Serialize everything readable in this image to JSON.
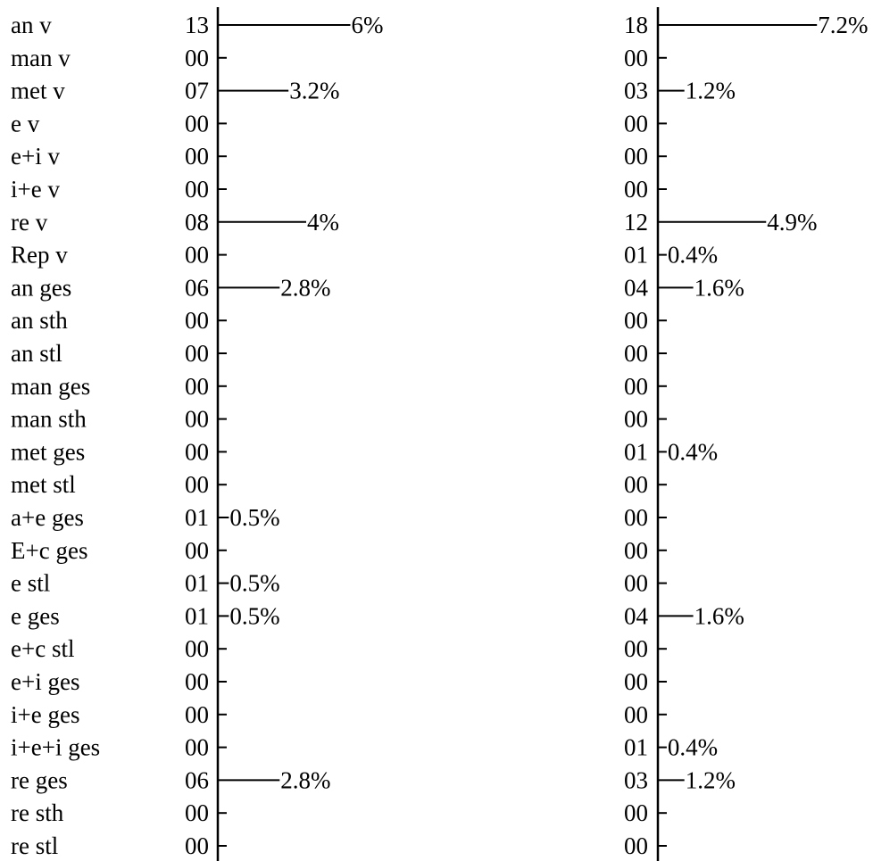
{
  "chart_data": {
    "type": "bar",
    "categories": [
      "an v",
      "man v",
      "met v",
      "e v",
      "e+i v",
      "i+e v",
      "re v",
      "Rep v",
      "an ges",
      "an sth",
      "an stl",
      "man ges",
      "man sth",
      "met ges",
      "met stl",
      "a+e ges",
      "E+c ges",
      "e stl",
      "e ges",
      "e+c stl",
      "e+i ges",
      "i+e ges",
      "i+e+i ges",
      "re ges",
      "re sth",
      "re stl"
    ],
    "panels": [
      {
        "counts": [
          "13",
          "00",
          "07",
          "00",
          "00",
          "00",
          "08",
          "00",
          "06",
          "00",
          "00",
          "00",
          "00",
          "00",
          "00",
          "01",
          "00",
          "01",
          "01",
          "00",
          "00",
          "00",
          "00",
          "06",
          "00",
          "00"
        ],
        "values": [
          6,
          0,
          3.2,
          0,
          0,
          0,
          4,
          0,
          2.8,
          0,
          0,
          0,
          0,
          0,
          0,
          0.5,
          0,
          0.5,
          0.5,
          0,
          0,
          0,
          0,
          2.8,
          0,
          0
        ],
        "labels": [
          "6%",
          "",
          "3.2%",
          "",
          "",
          "",
          "4%",
          "",
          "2.8%",
          "",
          "",
          "",
          "",
          "",
          "",
          "0.5%",
          "",
          "0.5%",
          "0.5%",
          "",
          "",
          "",
          "",
          "2.8%",
          "",
          ""
        ]
      },
      {
        "counts": [
          "18",
          "00",
          "03",
          "00",
          "00",
          "00",
          "12",
          "01",
          "04",
          "00",
          "00",
          "00",
          "00",
          "01",
          "00",
          "00",
          "00",
          "00",
          "04",
          "00",
          "00",
          "00",
          "01",
          "03",
          "00",
          "00"
        ],
        "values": [
          7.2,
          0,
          1.2,
          0,
          0,
          0,
          4.9,
          0.4,
          1.6,
          0,
          0,
          0,
          0,
          0.4,
          0,
          0,
          0,
          0,
          1.6,
          0,
          0,
          0,
          0.4,
          1.2,
          0,
          0
        ],
        "labels": [
          "7.2%",
          "",
          "1.2%",
          "",
          "",
          "",
          "4.9%",
          "0.4%",
          "1.6%",
          "",
          "",
          "",
          "",
          "0.4%",
          "",
          "",
          "",
          "",
          "1.6%",
          "",
          "",
          "",
          "0.4%",
          "1.2%",
          "",
          ""
        ]
      }
    ]
  }
}
